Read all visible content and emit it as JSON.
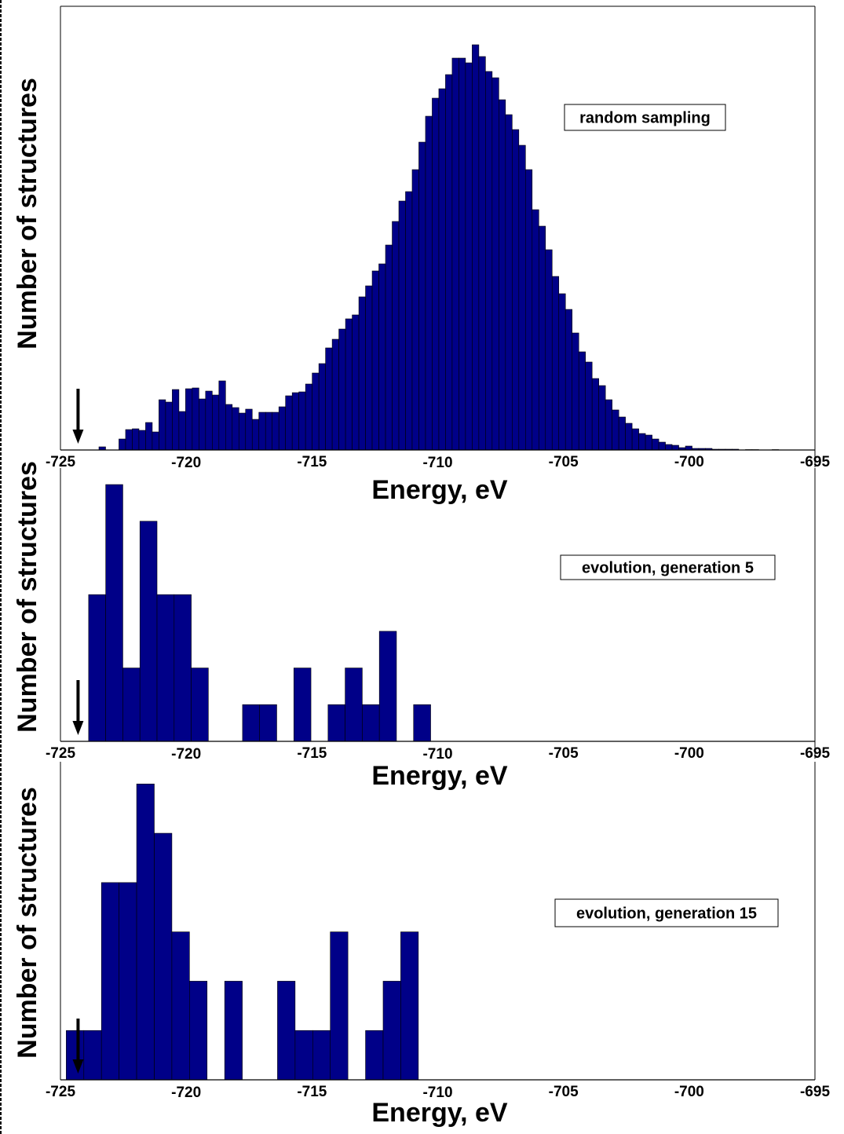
{
  "colors": {
    "bar": "#000088",
    "bar_edge": "#000000",
    "axis": "#000000"
  },
  "chart_data": [
    {
      "type": "bar",
      "title": "",
      "legend": "random sampling",
      "xlabel": "Energy, eV",
      "ylabel": "Number of structures",
      "xlim": [
        -725,
        -695
      ],
      "ylim": [
        0,
        565
      ],
      "xticks": [
        "-725",
        "-720",
        "-715",
        "-710",
        "-705",
        "-700",
        "-695"
      ],
      "bin_start": -723.47,
      "bin_width": 0.265,
      "values": [
        4,
        0,
        0,
        14,
        26,
        27,
        25,
        35,
        23,
        64,
        61,
        77,
        49,
        78,
        79,
        65,
        75,
        70,
        88,
        58,
        54,
        47,
        52,
        39,
        48,
        48,
        48,
        55,
        69,
        73,
        74,
        84,
        98,
        110,
        130,
        141,
        154,
        167,
        172,
        195,
        209,
        228,
        237,
        261,
        291,
        317,
        329,
        357,
        392,
        425,
        448,
        460,
        478,
        499,
        499,
        493,
        516,
        501,
        482,
        474,
        446,
        427,
        408,
        388,
        357,
        306,
        285,
        255,
        221,
        199,
        179,
        149,
        125,
        112,
        91,
        82,
        64,
        51,
        42,
        34,
        27,
        21,
        19,
        14,
        10,
        7,
        6,
        3,
        5,
        2,
        2,
        2,
        1,
        1,
        1,
        1,
        0,
        0.5,
        0.5,
        0,
        0,
        0.5
      ],
      "arrow_energy": -724.3
    },
    {
      "type": "bar",
      "title": "",
      "legend": "evolution, generation 5",
      "xlabel": "Energy, eV",
      "ylabel": "Number of structures",
      "xlim": [
        -725,
        -695
      ],
      "ylim": [
        0,
        7.45
      ],
      "xticks": [
        "-725",
        "-720",
        "-715",
        "-710",
        "-705",
        "-700",
        "-695"
      ],
      "bin_start": -723.88,
      "bin_width": 0.68,
      "values": [
        4,
        7,
        2,
        6,
        4,
        4,
        2,
        0,
        0,
        1,
        1,
        0,
        2,
        0,
        1,
        2,
        1,
        3,
        0,
        1
      ],
      "arrow_energy": -724.3
    },
    {
      "type": "bar",
      "title": "",
      "legend": "evolution, generation 15",
      "xlabel": "Energy, eV",
      "ylabel": "Number of structures",
      "xlim": [
        -725,
        -695
      ],
      "ylim": [
        0,
        6.45
      ],
      "xticks": [
        "-725",
        "-720",
        "-715",
        "-710",
        "-705",
        "-700",
        "-695"
      ],
      "bin_start": -724.77,
      "bin_width": 0.7,
      "values": [
        1,
        1,
        4,
        4,
        6,
        5,
        3,
        2,
        0,
        2,
        0,
        0,
        2,
        1,
        1,
        3,
        0,
        1,
        2,
        3
      ],
      "arrow_energy": -724.3
    }
  ]
}
